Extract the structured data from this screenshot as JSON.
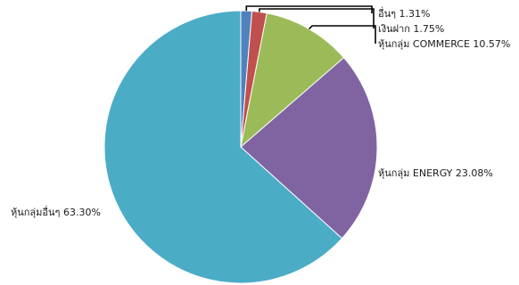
{
  "chart_data": {
    "type": "pie",
    "title": "",
    "slices": [
      {
        "name": "อื่นๆ",
        "value": 1.31,
        "label": "อื่นๆ 1.31%",
        "color": "#4F81BD"
      },
      {
        "name": "เงินฝาก",
        "value": 1.75,
        "label": "เงินฝาก 1.75%",
        "color": "#C0504D"
      },
      {
        "name": "หุ้นกลุ่ม COMMERCE",
        "value": 10.57,
        "label": "หุ้นกลุ่ม COMMERCE 10.57%",
        "color": "#9BBB59"
      },
      {
        "name": "หุ้นกลุ่ม ENERGY",
        "value": 23.08,
        "label": "หุ้นกลุ่ม ENERGY 23.08%",
        "color": "#8064A2"
      },
      {
        "name": "หุ้นกลุ่มอื่นๆ",
        "value": 63.3,
        "label": "หุ้นกลุ่มอื่นๆ 63.30%",
        "color": "#4BACC6"
      }
    ],
    "start": "12 o'clock",
    "direction": "clockwise",
    "legend": "none"
  }
}
